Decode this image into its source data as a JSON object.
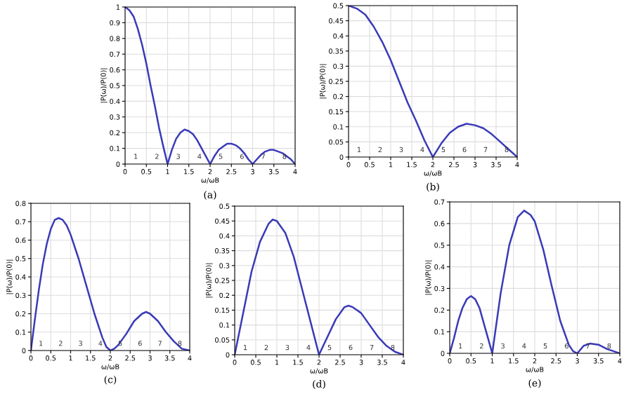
{
  "chart_data": [
    {
      "type": "line",
      "xlabel": "ω/ωB",
      "ylabel": "|P(ω)/P(0)|",
      "x": [
        0,
        0.1,
        0.2,
        0.3,
        0.4,
        0.5,
        0.6,
        0.7,
        0.8,
        0.9,
        1,
        1.1,
        1.2,
        1.3,
        1.4,
        1.5,
        1.6,
        1.7,
        1.8,
        1.9,
        2,
        2.1,
        2.2,
        2.3,
        2.4,
        2.5,
        2.6,
        2.7,
        2.8,
        2.9,
        3,
        3.1,
        3.2,
        3.3,
        3.4,
        3.5,
        3.6,
        3.7,
        3.8,
        3.9,
        4
      ],
      "series": [
        {
          "color": "#3a3ab8",
          "values": [
            1,
            0.98,
            0.94,
            0.86,
            0.76,
            0.64,
            0.5,
            0.37,
            0.23,
            0.11,
            0,
            0.09,
            0.16,
            0.2,
            0.22,
            0.21,
            0.19,
            0.15,
            0.1,
            0.05,
            0,
            0.05,
            0.09,
            0.11,
            0.13,
            0.13,
            0.12,
            0.1,
            0.07,
            0.03,
            0,
            0.03,
            0.06,
            0.08,
            0.09,
            0.09,
            0.08,
            0.07,
            0.05,
            0.03,
            0
          ]
        }
      ],
      "xlim": [
        0,
        4
      ],
      "xticks": [
        0,
        0.5,
        1,
        1.5,
        2,
        2.5,
        3,
        3.5,
        4
      ],
      "ylim": [
        0,
        1
      ],
      "yticks": [
        0,
        0.1,
        0.2,
        0.3,
        0.4,
        0.5,
        0.6,
        0.7,
        0.8,
        0.9,
        1
      ],
      "grid": true,
      "annotations": [
        "(a)",
        "1",
        "2",
        "3",
        "4",
        "5",
        "6",
        "7",
        "8"
      ]
    },
    {
      "type": "line",
      "xlabel": "ω/ωB",
      "ylabel": "|P(ω)/P(0)|",
      "x": [
        0,
        0.2,
        0.4,
        0.6,
        0.8,
        1,
        1.2,
        1.4,
        1.6,
        1.8,
        2,
        2.2,
        2.4,
        2.6,
        2.8,
        3,
        3.2,
        3.4,
        3.6,
        3.8,
        4
      ],
      "series": [
        {
          "color": "#3a3ab8",
          "values": [
            0.5,
            0.49,
            0.47,
            0.43,
            0.38,
            0.32,
            0.25,
            0.18,
            0.12,
            0.055,
            0,
            0.045,
            0.08,
            0.1,
            0.11,
            0.105,
            0.095,
            0.075,
            0.05,
            0.025,
            0
          ]
        }
      ],
      "xlim": [
        0,
        4
      ],
      "xticks": [
        0,
        0.5,
        1,
        1.5,
        2,
        2.5,
        3,
        3.5,
        4
      ],
      "ylim": [
        0,
        0.5
      ],
      "yticks": [
        0,
        0.05,
        0.1,
        0.15,
        0.2,
        0.25,
        0.3,
        0.35,
        0.4,
        0.45,
        0.5
      ],
      "grid": true,
      "annotations": [
        "(b)",
        "1",
        "2",
        "3",
        "4",
        "5",
        "6",
        "7",
        "8"
      ]
    },
    {
      "type": "line",
      "xlabel": "ω/ωB",
      "ylabel": "|P(ω)/P(0)|",
      "x": [
        0,
        0.1,
        0.2,
        0.3,
        0.4,
        0.5,
        0.6,
        0.7,
        0.8,
        0.9,
        1,
        1.2,
        1.4,
        1.6,
        1.8,
        1.9,
        2,
        2.1,
        2.2,
        2.4,
        2.6,
        2.8,
        2.9,
        3,
        3.2,
        3.4,
        3.6,
        3.8,
        4
      ],
      "series": [
        {
          "color": "#3a3ab8",
          "values": [
            0,
            0.17,
            0.33,
            0.47,
            0.58,
            0.66,
            0.71,
            0.72,
            0.71,
            0.68,
            0.63,
            0.5,
            0.35,
            0.2,
            0.07,
            0.02,
            0,
            0.01,
            0.03,
            0.09,
            0.16,
            0.2,
            0.21,
            0.2,
            0.16,
            0.1,
            0.05,
            0.01,
            0
          ]
        }
      ],
      "xlim": [
        0,
        4
      ],
      "xticks": [
        0,
        0.5,
        1,
        1.5,
        2,
        2.5,
        3,
        3.5,
        4
      ],
      "ylim": [
        0,
        0.8
      ],
      "yticks": [
        0,
        0.1,
        0.2,
        0.3,
        0.4,
        0.5,
        0.6,
        0.7,
        0.8
      ],
      "grid": true,
      "annotations": [
        "(c)",
        "1",
        "2",
        "3",
        "4",
        "5",
        "6",
        "7",
        "8"
      ]
    },
    {
      "type": "line",
      "xlabel": "ω/ωB",
      "ylabel": "|P(ω)/P(0)|",
      "x": [
        0,
        0.2,
        0.4,
        0.6,
        0.8,
        0.9,
        1,
        1.2,
        1.4,
        1.6,
        1.8,
        2,
        2.2,
        2.4,
        2.6,
        2.7,
        2.8,
        3,
        3.2,
        3.4,
        3.6,
        3.8,
        4
      ],
      "series": [
        {
          "color": "#3a3ab8",
          "values": [
            0,
            0.14,
            0.28,
            0.38,
            0.44,
            0.455,
            0.45,
            0.41,
            0.33,
            0.22,
            0.11,
            0,
            0.06,
            0.12,
            0.16,
            0.165,
            0.16,
            0.14,
            0.1,
            0.06,
            0.03,
            0.01,
            0
          ]
        }
      ],
      "xlim": [
        0,
        4
      ],
      "xticks": [
        0,
        0.5,
        1,
        1.5,
        2,
        2.5,
        3,
        3.5,
        4
      ],
      "ylim": [
        0,
        0.5
      ],
      "yticks": [
        0,
        0.05,
        0.1,
        0.15,
        0.2,
        0.25,
        0.3,
        0.35,
        0.4,
        0.45,
        0.5
      ],
      "grid": true,
      "annotations": [
        "(d)",
        "1",
        "2",
        "3",
        "4",
        "5",
        "6",
        "7",
        "8"
      ]
    },
    {
      "type": "line",
      "xlabel": "ω/ωB",
      "ylabel": "|P(ω)/P(0)|",
      "x": [
        0,
        0.1,
        0.2,
        0.3,
        0.4,
        0.5,
        0.6,
        0.7,
        0.8,
        0.9,
        1,
        1.2,
        1.4,
        1.6,
        1.75,
        1.9,
        2,
        2.2,
        2.4,
        2.6,
        2.8,
        2.9,
        3,
        3.15,
        3.3,
        3.5,
        3.7,
        3.85,
        4
      ],
      "series": [
        {
          "color": "#3a3ab8",
          "values": [
            0,
            0.07,
            0.15,
            0.21,
            0.25,
            0.265,
            0.25,
            0.21,
            0.14,
            0.07,
            0,
            0.28,
            0.5,
            0.63,
            0.66,
            0.64,
            0.61,
            0.48,
            0.31,
            0.15,
            0.04,
            0.01,
            0,
            0.035,
            0.045,
            0.04,
            0.02,
            0.01,
            0
          ]
        }
      ],
      "xlim": [
        0,
        4
      ],
      "xticks": [
        0,
        0.5,
        1,
        1.5,
        2,
        2.5,
        3,
        3.5,
        4
      ],
      "ylim": [
        0,
        0.7
      ],
      "yticks": [
        0,
        0.1,
        0.2,
        0.3,
        0.4,
        0.5,
        0.6,
        0.7
      ],
      "grid": true,
      "annotations": [
        "(e)",
        "1",
        "2",
        "3",
        "4",
        "5",
        "6",
        "7",
        "8"
      ]
    }
  ]
}
